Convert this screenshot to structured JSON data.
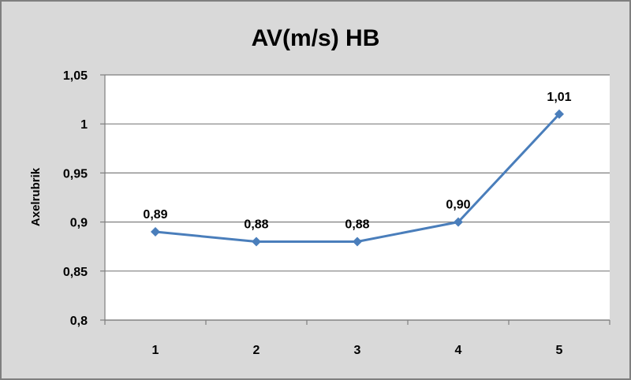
{
  "chart_data": {
    "type": "line",
    "title": "AV(m/s) HB",
    "xlabel": "",
    "ylabel": "Axelrubrik",
    "categories": [
      "1",
      "2",
      "3",
      "4",
      "5"
    ],
    "series": [
      {
        "values": [
          0.89,
          0.88,
          0.88,
          0.9,
          1.01
        ],
        "data_labels": [
          "0,89",
          "0,88",
          "0,88",
          "0,90",
          "1,01"
        ]
      }
    ],
    "ylim": [
      0.8,
      1.05
    ],
    "yticks": [
      0.8,
      0.85,
      0.9,
      0.95,
      1,
      1.05
    ],
    "ytick_labels": [
      "0,8",
      "0,85",
      "0,9",
      "0,95",
      "1",
      "1,05"
    ],
    "grid": true,
    "legend": "none",
    "colors": {
      "line": "#4a7ebb",
      "marker": "#4a7ebb",
      "background": "#d9d9d9",
      "plot_area": "#ffffff",
      "gridline": "#7f7f7f",
      "border": "#7f7f7f"
    }
  }
}
